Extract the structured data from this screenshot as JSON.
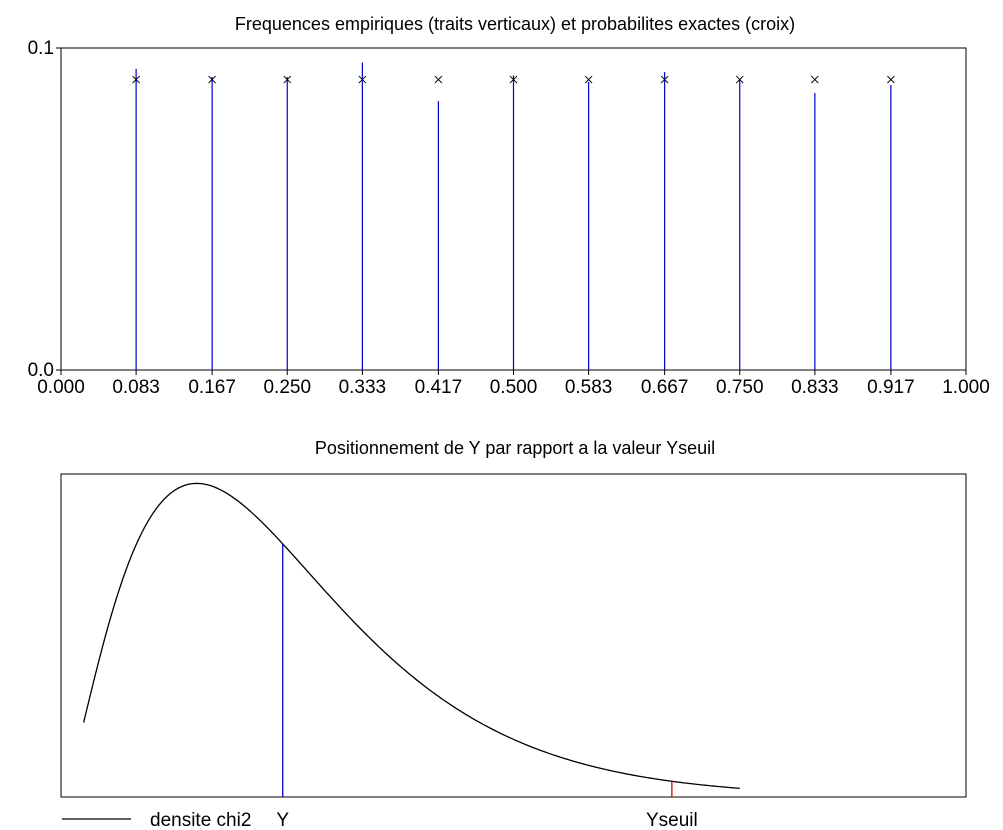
{
  "chart_data": [
    {
      "type": "scatter",
      "title": "Frequences empiriques (traits verticaux) et probabilites exactes (croix)",
      "x": [
        0.083,
        0.167,
        0.25,
        0.333,
        0.417,
        0.5,
        0.583,
        0.667,
        0.75,
        0.833,
        0.917
      ],
      "x_tick_labels": [
        "0.000",
        "0.083",
        "0.167",
        "0.250",
        "0.333",
        "0.417",
        "0.500",
        "0.583",
        "0.667",
        "0.750",
        "0.833",
        "0.917",
        "1.000"
      ],
      "x_ticks": [
        0,
        0.083,
        0.167,
        0.25,
        0.333,
        0.417,
        0.5,
        0.583,
        0.667,
        0.75,
        0.833,
        0.917,
        1.0
      ],
      "y_tick_labels": [
        "0.0",
        "0.1"
      ],
      "y_ticks": [
        0.0,
        0.1
      ],
      "xlim": [
        0,
        1
      ],
      "ylim": [
        0,
        0.1
      ],
      "series": [
        {
          "mark": "vertical-line",
          "color": "#0000cc",
          "values": [
            0.0935,
            0.091,
            0.091,
            0.0955,
            0.0835,
            0.0915,
            0.0895,
            0.0925,
            0.0905,
            0.086,
            0.0885
          ]
        },
        {
          "mark": "cross",
          "color": "#000000",
          "values": [
            0.0902,
            0.0902,
            0.0902,
            0.0902,
            0.0902,
            0.0902,
            0.0902,
            0.0902,
            0.0902,
            0.0902,
            0.0902
          ]
        }
      ],
      "grid": false
    },
    {
      "type": "line",
      "title": "Positionnement de Y  par rapport a la valeur Yseuil",
      "xlim": [
        0,
        20
      ],
      "ylim": [
        0,
        1.03
      ],
      "curve_x_range": [
        0.5,
        15
      ],
      "series": [
        {
          "name": "densite chi2",
          "color": "#000000",
          "distribution": "chi2",
          "df": 5
        }
      ],
      "markers": [
        {
          "label": "Y",
          "x": 4.9,
          "color": "#0000cc"
        },
        {
          "label": "Yseuil",
          "x": 13.5,
          "color": "#cc0000"
        }
      ],
      "legend": "bottom-left",
      "grid": false
    }
  ]
}
